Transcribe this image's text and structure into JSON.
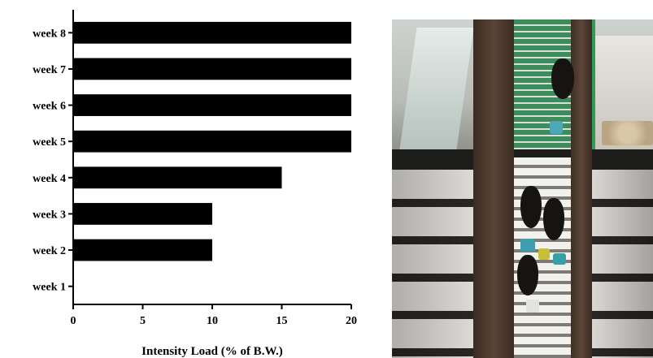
{
  "chart_data": {
    "type": "bar",
    "orientation": "horizontal",
    "categories": [
      "week 8",
      "week 7",
      "week 6",
      "week 5",
      "week 4",
      "week 3",
      "week 2",
      "week 1"
    ],
    "values": [
      20,
      20,
      20,
      20,
      15,
      10,
      10,
      0
    ],
    "title": "",
    "xlabel": "Intensity Load (% of B.W.)",
    "ylabel": "",
    "xlim": [
      0,
      20
    ],
    "xticks": [
      "0",
      "5",
      "10",
      "15",
      "20"
    ],
    "grid": false,
    "bar_color": "#000000"
  },
  "photo": {
    "icon": "experimental-photo"
  }
}
